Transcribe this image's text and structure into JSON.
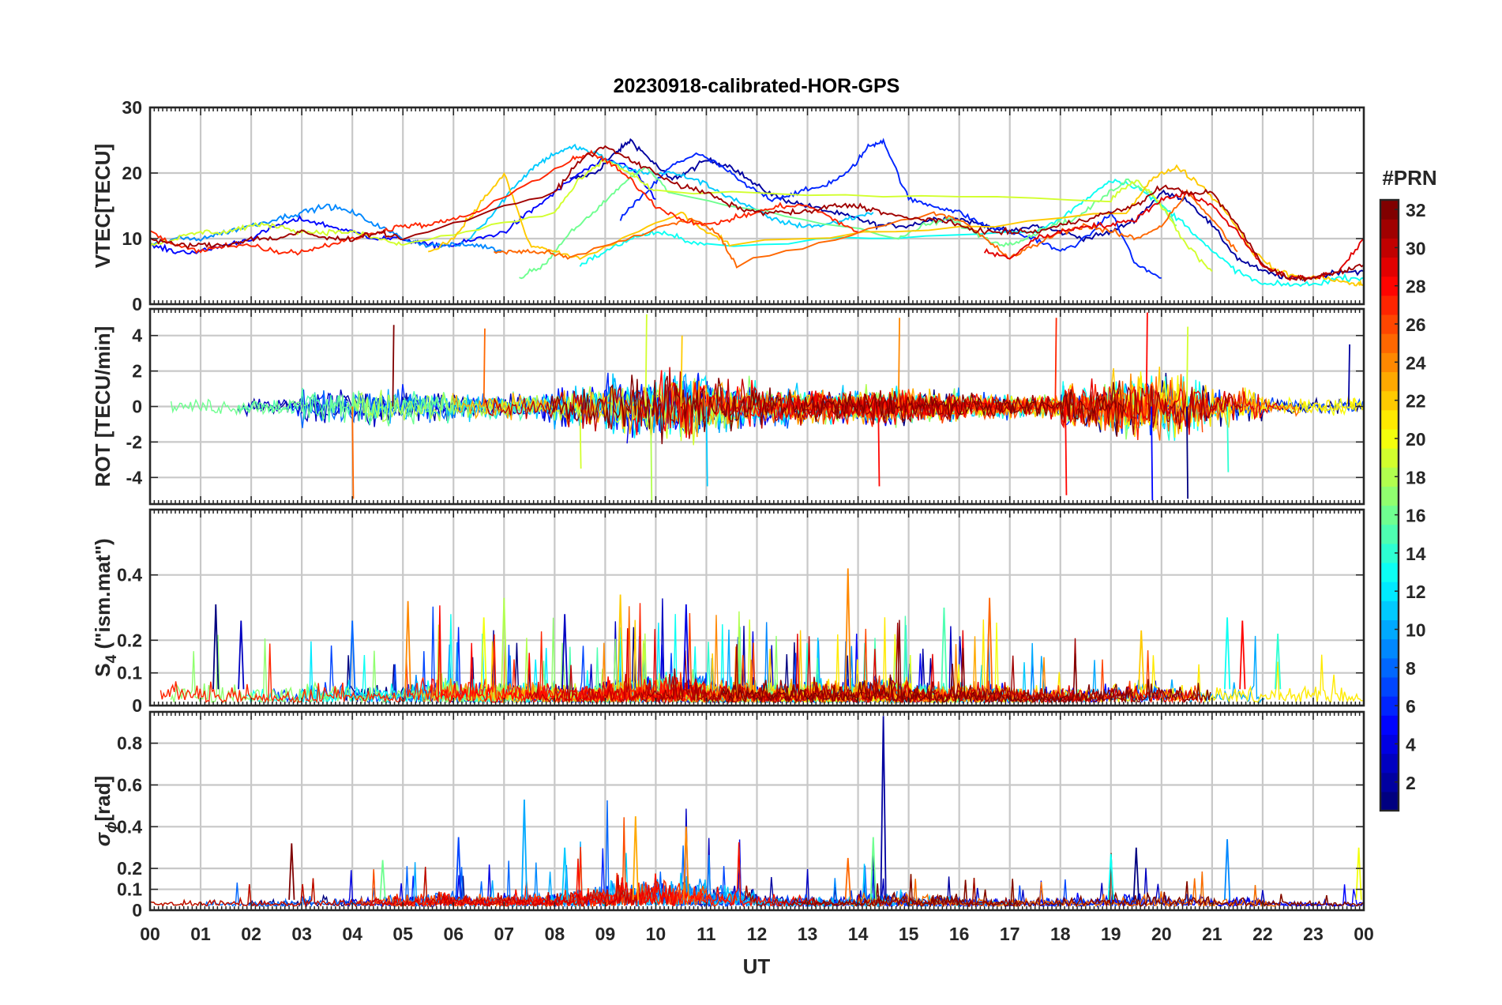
{
  "chart_data": {
    "type": "line",
    "title": "20230918-calibrated-HOR-GPS",
    "xlabel": "UT",
    "x_ticks": [
      "00",
      "01",
      "02",
      "03",
      "04",
      "05",
      "06",
      "07",
      "08",
      "09",
      "10",
      "11",
      "12",
      "13",
      "14",
      "15",
      "16",
      "17",
      "18",
      "19",
      "20",
      "21",
      "22",
      "23",
      "00"
    ],
    "x_range_hours": [
      0,
      24
    ],
    "grid": true,
    "colorbar": {
      "label": "#PRN",
      "range": [
        1,
        32
      ],
      "ticks": [
        "2",
        "4",
        "6",
        "8",
        "10",
        "12",
        "14",
        "16",
        "18",
        "20",
        "22",
        "24",
        "26",
        "28",
        "30",
        "32"
      ],
      "colormap": "jet",
      "placement": "right"
    },
    "panels": [
      {
        "id": "vtec",
        "ylabel": "VTEC[TECU]",
        "ylim": [
          0,
          30
        ],
        "y_ticks": [
          "0",
          "10",
          "20",
          "30"
        ],
        "series": [
          {
            "prn": 2,
            "x": [
              8.3,
              8.8,
              9.2,
              9.5,
              9.9,
              10.3,
              10.6,
              11.0,
              11.5,
              12.0,
              12.5,
              13.0,
              13.5,
              14.0,
              14.4,
              15.0,
              15.5,
              16.0,
              16.5,
              17.0,
              17.5,
              18.0,
              18.5,
              19.0,
              19.5,
              20.0,
              20.5,
              21.0,
              21.5,
              22.0,
              22.5,
              23.0,
              23.5,
              24.0
            ],
            "y": [
              19,
              20,
              23,
              25,
              22,
              19,
              20,
              22,
              21,
              18,
              16,
              15,
              14,
              13,
              12,
              12,
              13,
              13,
              12,
              11,
              12,
              11,
              10,
              11,
              13,
              17,
              16,
              12,
              7,
              5,
              4,
              4,
              5,
              5
            ]
          },
          {
            "prn": 5,
            "x": [
              0,
              0.5,
              1.0,
              1.5,
              2.0,
              2.5,
              3.0,
              3.5,
              4.0,
              4.5,
              5.0,
              5.5,
              6.0,
              6.5,
              7.0,
              7.5,
              8.0,
              8.5,
              9.0,
              9.5,
              10.0
            ],
            "y": [
              9,
              8,
              8,
              9,
              10,
              12,
              13,
              12,
              11,
              10,
              10,
              9,
              9,
              10,
              11,
              14,
              17,
              20,
              22,
              21,
              16
            ]
          },
          {
            "prn": 6,
            "x": [
              9.3,
              9.8,
              10.3,
              10.8,
              11.3,
              11.8,
              12.3,
              12.8,
              13.3,
              13.8,
              14.2,
              14.5,
              15.0,
              15.5,
              16.0,
              16.5,
              17.0,
              17.5,
              18.0,
              18.5,
              19.0,
              19.5,
              20.0
            ],
            "y": [
              13,
              17,
              21,
              23,
              21,
              18,
              16,
              17,
              18,
              20,
              24,
              25,
              16,
              15,
              14,
              12,
              11,
              10,
              8,
              10,
              14,
              6,
              4
            ]
          },
          {
            "prn": 9,
            "x": [
              0,
              0.5,
              1.0,
              1.5,
              2.0,
              2.5,
              3.0,
              3.5,
              4.0,
              4.5,
              5.0,
              5.5,
              6.0,
              6.5,
              7.0
            ],
            "y": [
              9,
              10,
              10,
              11,
              12,
              13,
              14,
              15,
              14,
              12,
              10,
              9,
              9,
              9,
              8
            ]
          },
          {
            "prn": 11,
            "x": [
              6.3,
              6.8,
              7.2,
              7.6,
              8.0,
              8.4,
              8.8,
              9.3,
              9.8,
              10.3,
              10.8,
              11.3,
              11.8,
              12.3,
              12.8,
              13.3,
              13.8,
              14.3
            ],
            "y": [
              10,
              14,
              18,
              21,
              23,
              24,
              23,
              21,
              20,
              20,
              19,
              17,
              15,
              13,
              12,
              12,
              13,
              14
            ]
          },
          {
            "prn": 13,
            "x": [
              8.5,
              9.0,
              9.5,
              10.0,
              10.5,
              11.0,
              17.5,
              18.0,
              18.5,
              19.0,
              19.5,
              20.0,
              20.5,
              21.0,
              21.5,
              22.0,
              22.5,
              23.0,
              23.5,
              24.0
            ],
            "y": [
              6,
              8,
              10,
              11,
              10,
              9,
              11,
              13,
              16,
              19,
              18,
              15,
              12,
              8,
              5,
              3,
              3,
              3,
              4,
              4
            ]
          },
          {
            "prn": 16,
            "x": [
              7.3,
              7.8,
              8.3,
              8.8,
              9.3,
              9.8,
              10.3,
              14.8,
              15.3,
              15.8,
              16.3,
              16.8,
              17.3,
              17.8,
              18.3,
              18.8,
              19.3,
              19.8,
              20.3
            ],
            "y": [
              4,
              6,
              11,
              14,
              18,
              21,
              17,
              10,
              12,
              13,
              11,
              9,
              10,
              12,
              13,
              16,
              19,
              17,
              12
            ]
          },
          {
            "prn": 19,
            "x": [
              0,
              0.5,
              1.0,
              1.5,
              2.0,
              2.5,
              3.0,
              3.5,
              4.0,
              4.5,
              5.0,
              8.0,
              8.5,
              9.0,
              9.5,
              10.0,
              19.0,
              19.5,
              20.0,
              20.5,
              21.0
            ],
            "y": [
              9,
              10,
              11,
              11,
              12,
              12,
              11,
              11,
              11,
              10,
              9,
              14,
              19,
              22,
              20,
              17,
              16,
              19,
              15,
              9,
              5
            ]
          },
          {
            "prn": 22,
            "x": [
              5.5,
              6.0,
              6.5,
              7.0,
              7.5,
              8.0,
              8.5,
              10.5,
              11.0,
              11.5,
              19.3,
              19.8,
              20.3,
              20.8,
              21.3,
              21.8,
              22.3,
              22.8,
              23.3,
              23.8,
              24.0
            ],
            "y": [
              8,
              10,
              15,
              20,
              9,
              8,
              7,
              14,
              11,
              9,
              14,
              19,
              21,
              18,
              14,
              8,
              5,
              4,
              4,
              3,
              3
            ]
          },
          {
            "prn": 25,
            "x": [
              6.8,
              7.3,
              7.8,
              8.3,
              10.2,
              10.7,
              11.2,
              11.6,
              15.5,
              16.0,
              16.5,
              17.0,
              17.5,
              18.0,
              18.5,
              19.0,
              19.5,
              20.0,
              20.5,
              21.0,
              21.5
            ],
            "y": [
              8,
              8,
              8,
              7,
              12,
              13,
              11,
              6,
              14,
              13,
              10,
              7,
              9,
              11,
              12,
              11,
              10,
              12,
              17,
              13,
              8
            ]
          },
          {
            "prn": 27,
            "x": [
              0,
              0.5,
              1.0,
              1.5,
              2.0,
              2.5,
              3.0,
              3.5,
              4.0,
              4.5,
              5.0,
              5.5,
              6.0,
              6.5,
              8.3,
              8.7,
              9.0,
              9.5,
              10.0,
              10.5,
              11.0,
              11.5,
              12.0,
              12.5,
              13.0,
              13.5,
              14.0
            ],
            "y": [
              11,
              9,
              8,
              9,
              9,
              8,
              8,
              9,
              10,
              11,
              12,
              12,
              13,
              14,
              22,
              23,
              22,
              19,
              15,
              13,
              12,
              13,
              14,
              15,
              15,
              13,
              11
            ]
          },
          {
            "prn": 29,
            "x": [
              16.5,
              17.0,
              17.5,
              18.0,
              18.5,
              19.0,
              19.5,
              20.0,
              20.5,
              21.0,
              21.5,
              22.0,
              22.5,
              23.0,
              23.5,
              24.0
            ],
            "y": [
              8,
              7,
              10,
              11,
              12,
              12,
              13,
              16,
              17,
              15,
              11,
              6,
              4,
              4,
              5,
              10
            ]
          },
          {
            "prn": 31,
            "x": [
              0,
              0.5,
              1.0,
              1.5,
              2.0,
              2.5,
              3.0,
              3.5,
              4.0,
              4.5,
              5.0,
              8.0,
              8.5,
              9.0,
              9.5,
              10.0,
              10.5,
              11.0,
              11.5,
              12.0,
              12.5,
              13.0,
              13.5,
              14.0,
              14.5,
              15.0,
              15.5,
              16.0,
              16.5,
              17.0,
              17.5,
              18.0,
              18.5,
              19.0,
              19.5,
              20.0,
              20.5,
              21.0,
              21.5,
              22.0,
              22.5,
              23.0,
              23.5,
              24.0
            ],
            "y": [
              10,
              9,
              9,
              9,
              10,
              10,
              11,
              10,
              10,
              11,
              10,
              17,
              22,
              24,
              22,
              20,
              18,
              17,
              15,
              14,
              14,
              14,
              15,
              15,
              14,
              13,
              13,
              12,
              11,
              11,
              11,
              12,
              13,
              14,
              15,
              18,
              17,
              17,
              12,
              6,
              4,
              4,
              5,
              6
            ]
          }
        ]
      },
      {
        "id": "rot",
        "ylabel": "ROT [TECU/min]",
        "ylim": [
          -5.5,
          5.5
        ],
        "y_ticks": [
          "-4",
          "-2",
          "0",
          "2",
          "4"
        ],
        "amplitude_by_hour": [
          0.6,
          0.8,
          0.8,
          1.6,
          1.6,
          1.4,
          1.0,
          1.2,
          1.8,
          2.6,
          2.8,
          2.2,
          1.6,
          1.4,
          1.6,
          1.4,
          1.0,
          1.0,
          2.0,
          2.6,
          2.6,
          1.8,
          0.8,
          0.8
        ],
        "spikes": [
          {
            "x": 4.0,
            "y": -5.2
          },
          {
            "x": 4.8,
            "y": 4.6
          },
          {
            "x": 6.6,
            "y": 4.4
          },
          {
            "x": 8.5,
            "y": -3.5
          },
          {
            "x": 9.8,
            "y": 5.2
          },
          {
            "x": 9.9,
            "y": -5.4
          },
          {
            "x": 10.5,
            "y": 4.0
          },
          {
            "x": 11.0,
            "y": -4.5
          },
          {
            "x": 14.4,
            "y": -4.5
          },
          {
            "x": 14.8,
            "y": 5.0
          },
          {
            "x": 17.9,
            "y": 5.0
          },
          {
            "x": 18.1,
            "y": -5.0
          },
          {
            "x": 19.7,
            "y": 5.3
          },
          {
            "x": 19.8,
            "y": -5.3
          },
          {
            "x": 20.5,
            "y": 4.5
          },
          {
            "x": 20.5,
            "y": -5.2
          },
          {
            "x": 21.3,
            "y": -3.7
          },
          {
            "x": 23.7,
            "y": 3.5
          }
        ]
      },
      {
        "id": "s4",
        "ylabel_base": "S",
        "ylabel_sub": "4",
        "ylabel_rest": " (\"ism.mat\")",
        "ylim": [
          0,
          0.6
        ],
        "y_ticks": [
          "0",
          "0.1",
          "0.2",
          "0.4"
        ],
        "y_tick_values": [
          0,
          0.1,
          0.2,
          0.4
        ],
        "level_by_hour": [
          0.12,
          0.1,
          0.08,
          0.1,
          0.09,
          0.12,
          0.1,
          0.1,
          0.09,
          0.12,
          0.13,
          0.11,
          0.1,
          0.1,
          0.12,
          0.09,
          0.1,
          0.07,
          0.08,
          0.1,
          0.09,
          0.1,
          0.09,
          0.08
        ],
        "spikes": [
          {
            "x": 1.3,
            "y": 0.31
          },
          {
            "x": 1.8,
            "y": 0.26
          },
          {
            "x": 4.0,
            "y": 0.26
          },
          {
            "x": 5.1,
            "y": 0.32
          },
          {
            "x": 6.6,
            "y": 0.27
          },
          {
            "x": 7.0,
            "y": 0.33
          },
          {
            "x": 8.2,
            "y": 0.28
          },
          {
            "x": 9.3,
            "y": 0.34
          },
          {
            "x": 10.6,
            "y": 0.31
          },
          {
            "x": 13.8,
            "y": 0.42
          },
          {
            "x": 15.7,
            "y": 0.3
          },
          {
            "x": 16.6,
            "y": 0.33
          },
          {
            "x": 19.6,
            "y": 0.23
          },
          {
            "x": 21.3,
            "y": 0.27
          },
          {
            "x": 21.6,
            "y": 0.26
          },
          {
            "x": 22.3,
            "y": 0.22
          }
        ]
      },
      {
        "id": "sigma_phi",
        "ylabel_base": "σ",
        "ylabel_sub": "ϕ",
        "ylabel_rest": "[rad]",
        "ylim": [
          0,
          0.95
        ],
        "y_ticks": [
          "0",
          "0.1",
          "0.2",
          "0.4",
          "0.6",
          "0.8"
        ],
        "y_tick_values": [
          0,
          0.1,
          0.2,
          0.4,
          0.6,
          0.8
        ],
        "level_by_hour": [
          0.05,
          0.05,
          0.05,
          0.08,
          0.08,
          0.1,
          0.09,
          0.1,
          0.14,
          0.2,
          0.22,
          0.15,
          0.08,
          0.07,
          0.1,
          0.08,
          0.06,
          0.06,
          0.08,
          0.1,
          0.09,
          0.07,
          0.04,
          0.04
        ],
        "spikes": [
          {
            "x": 2.8,
            "y": 0.32
          },
          {
            "x": 4.6,
            "y": 0.24
          },
          {
            "x": 6.1,
            "y": 0.35
          },
          {
            "x": 7.4,
            "y": 0.53
          },
          {
            "x": 8.2,
            "y": 0.3
          },
          {
            "x": 9.6,
            "y": 0.45
          },
          {
            "x": 10.6,
            "y": 0.4
          },
          {
            "x": 13.8,
            "y": 0.25
          },
          {
            "x": 14.3,
            "y": 0.35
          },
          {
            "x": 14.5,
            "y": 0.93
          },
          {
            "x": 19.0,
            "y": 0.27
          },
          {
            "x": 19.5,
            "y": 0.3
          },
          {
            "x": 21.3,
            "y": 0.34
          },
          {
            "x": 23.9,
            "y": 0.3
          }
        ]
      }
    ]
  },
  "colors": {
    "grid": "#c8c8c8",
    "axis": "#262626",
    "background": "#ffffff"
  }
}
